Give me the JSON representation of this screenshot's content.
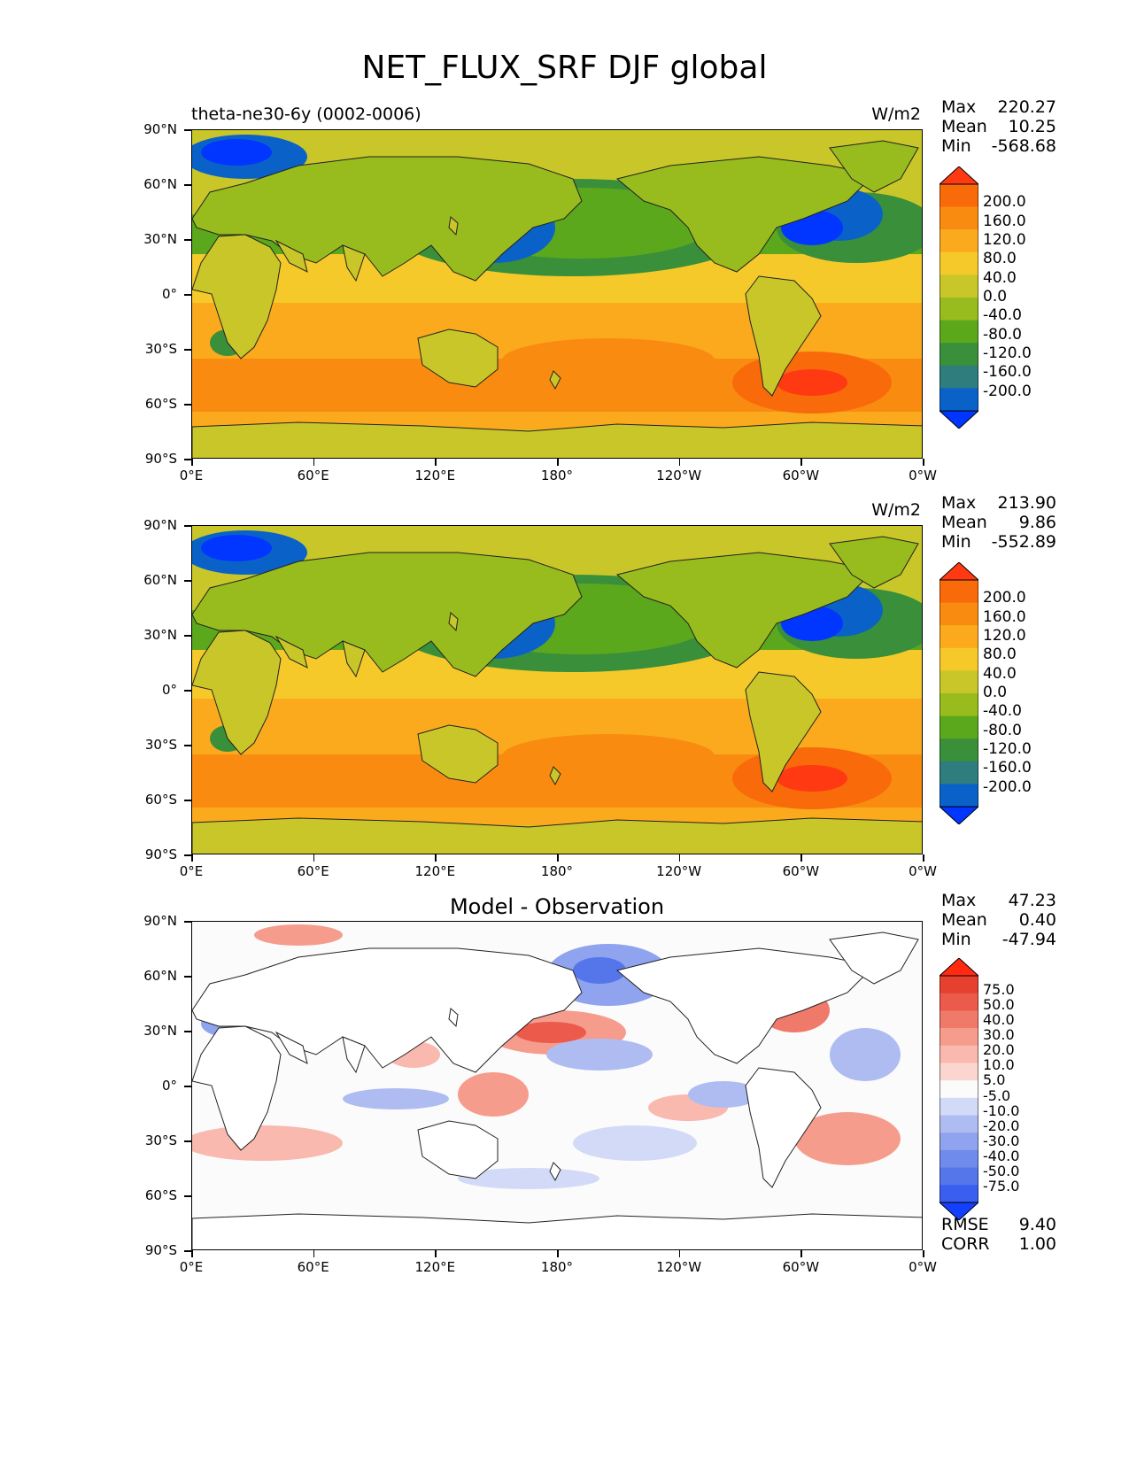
{
  "title": "NET_FLUX_SRF DJF global",
  "x_ticks": [
    "0°E",
    "60°E",
    "120°E",
    "180°",
    "120°W",
    "60°W",
    "0°W"
  ],
  "y_ticks": [
    "90°N",
    "60°N",
    "30°N",
    "0°",
    "30°S",
    "60°S",
    "90°S"
  ],
  "panels": [
    {
      "left_title": "theta-ne30-6y (0002-0006)",
      "center_title": "",
      "units": "W/m2",
      "stats": {
        "max_label": "Max",
        "max": "220.27",
        "mean_label": "Mean",
        "mean": "10.25",
        "min_label": "Min",
        "min": "-568.68"
      },
      "colorbar_labels": [
        "200.0",
        "160.0",
        "120.0",
        "80.0",
        "40.0",
        "0.0",
        "-40.0",
        "-80.0",
        "-120.0",
        "-160.0",
        "-200.0"
      ]
    },
    {
      "left_title": "",
      "center_title": "",
      "units": "W/m2",
      "stats": {
        "max_label": "Max",
        "max": "213.90",
        "mean_label": "Mean",
        "mean": "9.86",
        "min_label": "Min",
        "min": "-552.89"
      },
      "colorbar_labels": [
        "200.0",
        "160.0",
        "120.0",
        "80.0",
        "40.0",
        "0.0",
        "-40.0",
        "-80.0",
        "-120.0",
        "-160.0",
        "-200.0"
      ]
    },
    {
      "left_title": "",
      "center_title": "Model - Observation",
      "units": "",
      "stats": {
        "max_label": "Max",
        "max": "47.23",
        "mean_label": "Mean",
        "mean": "0.40",
        "min_label": "Min",
        "min": "-47.94"
      },
      "colorbar_labels": [
        "75.0",
        "50.0",
        "40.0",
        "30.0",
        "20.0",
        "10.0",
        "5.0",
        "-5.0",
        "-10.0",
        "-20.0",
        "-30.0",
        "-40.0",
        "-50.0",
        "-75.0"
      ],
      "rmse_label": "RMSE",
      "rmse": "9.40",
      "corr_label": "CORR",
      "corr": "1.00"
    }
  ],
  "colors": {
    "flux_levels": [
      "#0036ff",
      "#0a62c9",
      "#2f7d7d",
      "#3a8f3a",
      "#5ca81c",
      "#98bb1e",
      "#c9c62a",
      "#f5c92a",
      "#fbaa1e",
      "#f98c10",
      "#f96a0a",
      "#ff3a12"
    ],
    "diff_levels": [
      "#1340ff",
      "#3a5ef0",
      "#5476ea",
      "#6f8bec",
      "#8fa3ee",
      "#afbcf2",
      "#d2daf7",
      "#fbfbfb",
      "#fbd6d0",
      "#f9b9ae",
      "#f69c8d",
      "#f07a6a",
      "#eb5a4b",
      "#e6402e",
      "#ff2a10"
    ]
  }
}
